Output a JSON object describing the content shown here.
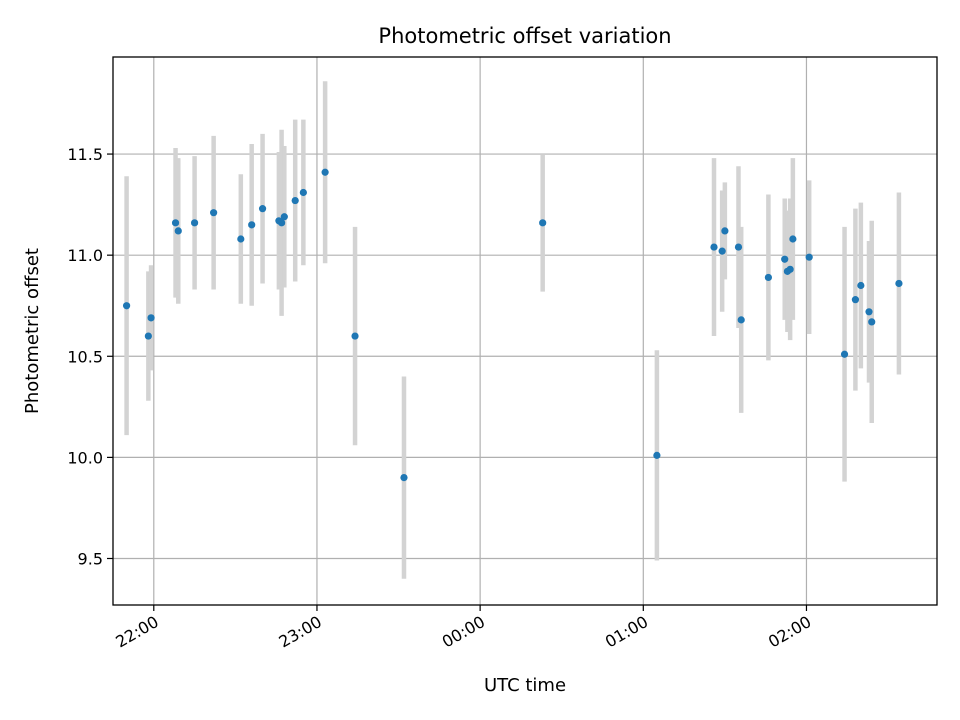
{
  "chart_data": {
    "type": "scatter",
    "title": "Photometric offset variation",
    "xlabel": "UTC time",
    "ylabel": "Photometric offset",
    "x_ticks": [
      "22:00",
      "23:00",
      "00:00",
      "01:00",
      "02:00"
    ],
    "y_ticks": [
      "9.5",
      "10.0",
      "10.5",
      "11.0",
      "11.5"
    ],
    "xlim": [
      "21:45",
      "02:48"
    ],
    "ylim": [
      9.27,
      11.98
    ],
    "grid": true,
    "colors": {
      "points": "#1f77b4",
      "errorbars": "#d3d3d3"
    },
    "points": [
      {
        "x": "21:50",
        "y": 10.75,
        "yerr": 0.64
      },
      {
        "x": "21:58",
        "y": 10.6,
        "yerr": 0.32
      },
      {
        "x": "21:59",
        "y": 10.69,
        "yerr": 0.26
      },
      {
        "x": "22:08",
        "y": 11.16,
        "yerr": 0.37
      },
      {
        "x": "22:09",
        "y": 11.12,
        "yerr": 0.36
      },
      {
        "x": "22:15",
        "y": 11.16,
        "yerr": 0.33
      },
      {
        "x": "22:22",
        "y": 11.21,
        "yerr": 0.38
      },
      {
        "x": "22:32",
        "y": 11.08,
        "yerr": 0.32
      },
      {
        "x": "22:36",
        "y": 11.15,
        "yerr": 0.4
      },
      {
        "x": "22:40",
        "y": 11.23,
        "yerr": 0.37
      },
      {
        "x": "22:46",
        "y": 11.17,
        "yerr": 0.34
      },
      {
        "x": "22:47",
        "y": 11.16,
        "yerr": 0.46
      },
      {
        "x": "22:48",
        "y": 11.19,
        "yerr": 0.35
      },
      {
        "x": "22:52",
        "y": 11.27,
        "yerr": 0.4
      },
      {
        "x": "22:55",
        "y": 11.31,
        "yerr": 0.36
      },
      {
        "x": "23:03",
        "y": 11.41,
        "yerr": 0.45
      },
      {
        "x": "23:14",
        "y": 10.6,
        "yerr": 0.54
      },
      {
        "x": "23:32",
        "y": 9.9,
        "yerr": 0.5
      },
      {
        "x": "00:23",
        "y": 11.16,
        "yerr": 0.34
      },
      {
        "x": "01:05",
        "y": 10.01,
        "yerr": 0.52
      },
      {
        "x": "01:26",
        "y": 11.04,
        "yerr": 0.44
      },
      {
        "x": "01:29",
        "y": 11.02,
        "yerr": 0.3
      },
      {
        "x": "01:30",
        "y": 11.12,
        "yerr": 0.24
      },
      {
        "x": "01:35",
        "y": 11.04,
        "yerr": 0.4
      },
      {
        "x": "01:36",
        "y": 10.68,
        "yerr": 0.46
      },
      {
        "x": "01:46",
        "y": 10.89,
        "yerr": 0.41
      },
      {
        "x": "01:52",
        "y": 10.98,
        "yerr": 0.3
      },
      {
        "x": "01:53",
        "y": 10.92,
        "yerr": 0.3
      },
      {
        "x": "01:54",
        "y": 10.93,
        "yerr": 0.35
      },
      {
        "x": "01:55",
        "y": 11.08,
        "yerr": 0.4
      },
      {
        "x": "02:01",
        "y": 10.99,
        "yerr": 0.38
      },
      {
        "x": "02:14",
        "y": 10.51,
        "yerr": 0.63
      },
      {
        "x": "02:18",
        "y": 10.78,
        "yerr": 0.45
      },
      {
        "x": "02:20",
        "y": 10.85,
        "yerr": 0.41
      },
      {
        "x": "02:23",
        "y": 10.72,
        "yerr": 0.35
      },
      {
        "x": "02:24",
        "y": 10.67,
        "yerr": 0.5
      },
      {
        "x": "02:34",
        "y": 10.86,
        "yerr": 0.45
      }
    ]
  }
}
